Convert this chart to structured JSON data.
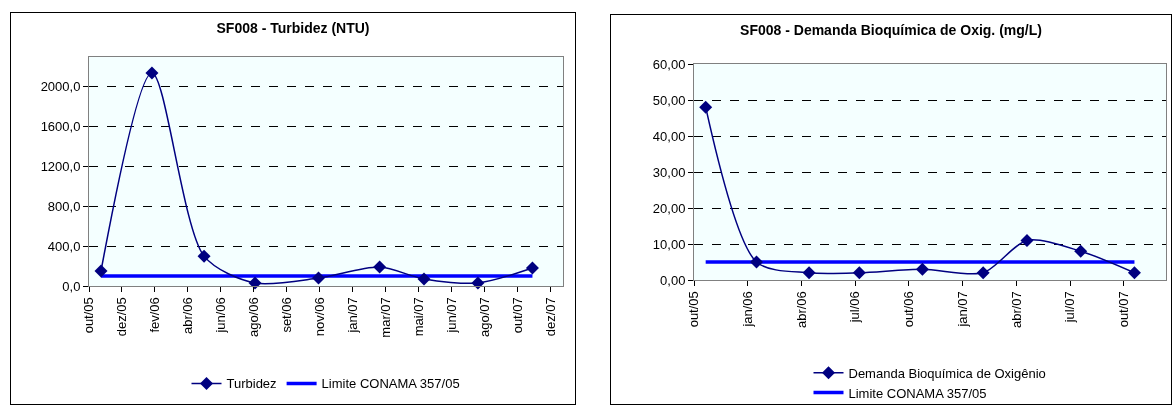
{
  "chart_data": [
    {
      "type": "line",
      "title": "SF008 - Turbidez (NTU)",
      "xlim": [
        "2005-10-31",
        "2007-12-31"
      ],
      "ylim": [
        0,
        2300
      ],
      "xticks": [
        {
          "value": "2005-10-31",
          "label": "out/05"
        },
        {
          "value": "2005-12-25",
          "label": "dez/05"
        },
        {
          "value": "2006-02-18",
          "label": "fev/06"
        },
        {
          "value": "2006-04-14",
          "label": "abr/06"
        },
        {
          "value": "2006-06-08",
          "label": "jun/06"
        },
        {
          "value": "2006-08-02",
          "label": "ago/06"
        },
        {
          "value": "2006-09-26",
          "label": "set/06"
        },
        {
          "value": "2006-11-20",
          "label": "nov/06"
        },
        {
          "value": "2007-01-14",
          "label": "jan/07"
        },
        {
          "value": "2007-03-10",
          "label": "mar/07"
        },
        {
          "value": "2007-05-04",
          "label": "mai/07"
        },
        {
          "value": "2007-06-28",
          "label": "jun/07"
        },
        {
          "value": "2007-08-22",
          "label": "ago/07"
        },
        {
          "value": "2007-10-16",
          "label": "out/07"
        },
        {
          "value": "2007-12-10",
          "label": "dez/07"
        }
      ],
      "yticks": [
        {
          "value": 0,
          "label": "0,0"
        },
        {
          "value": 400,
          "label": "400,0"
        },
        {
          "value": 800,
          "label": "800,0"
        },
        {
          "value": 1200,
          "label": "1200,0"
        },
        {
          "value": 1600,
          "label": "1600,0"
        },
        {
          "value": 2000,
          "label": "2000,0"
        }
      ],
      "grid": "y",
      "legend": "bottom",
      "series": [
        {
          "name": "Turbidez",
          "color": "#000080",
          "marker": "diamond",
          "x": [
            "2005-11-20",
            "2006-02-13",
            "2006-05-11",
            "2006-08-04",
            "2006-11-18",
            "2007-02-28",
            "2007-05-13",
            "2007-08-11",
            "2007-11-10"
          ],
          "values": [
            150,
            2140,
            300,
            30,
            80,
            190,
            70,
            30,
            180
          ]
        },
        {
          "name": "Limite CONAMA 357/05",
          "color": "#0000ff",
          "marker": "none",
          "x": [
            "2005-11-20",
            "2007-11-10"
          ],
          "values": [
            100,
            100
          ]
        }
      ]
    },
    {
      "type": "line",
      "title": "SF008 - Demanda Bioquímica de Oxig. (mg/L)",
      "xlim": [
        "2005-10-01",
        "2007-12-18"
      ],
      "ylim": [
        0,
        60
      ],
      "xticks": [
        {
          "value": "2005-10-01",
          "label": "out/05"
        },
        {
          "value": "2006-01-01",
          "label": "jan/06"
        },
        {
          "value": "2006-04-03",
          "label": "abr/06"
        },
        {
          "value": "2006-07-04",
          "label": "jul/06"
        },
        {
          "value": "2006-10-04",
          "label": "out/06"
        },
        {
          "value": "2007-01-04",
          "label": "jan/07"
        },
        {
          "value": "2007-04-06",
          "label": "abr/07"
        },
        {
          "value": "2007-07-07",
          "label": "jul/07"
        },
        {
          "value": "2007-10-07",
          "label": "out/07"
        }
      ],
      "yticks": [
        {
          "value": 0,
          "label": "0,00"
        },
        {
          "value": 10,
          "label": "10,00"
        },
        {
          "value": 20,
          "label": "20,00"
        },
        {
          "value": 30,
          "label": "30,00"
        },
        {
          "value": 40,
          "label": "40,00"
        },
        {
          "value": 50,
          "label": "50,00"
        },
        {
          "value": 60,
          "label": "60,00"
        }
      ],
      "grid": "y",
      "legend": "bottom",
      "series": [
        {
          "name": "Demanda Bioquímica de Oxigênio",
          "color": "#000080",
          "marker": "diamond",
          "x": [
            "2005-10-21",
            "2006-01-16",
            "2006-04-16",
            "2006-07-11",
            "2006-10-27",
            "2007-02-08",
            "2007-04-24",
            "2007-07-25",
            "2007-10-25"
          ],
          "values": [
            48,
            5,
            2,
            2,
            3,
            2,
            11,
            8,
            2
          ]
        },
        {
          "name": "Limite CONAMA 357/05",
          "color": "#0000ff",
          "marker": "none",
          "x": [
            "2005-10-21",
            "2007-10-25"
          ],
          "values": [
            5,
            5
          ]
        }
      ]
    }
  ]
}
